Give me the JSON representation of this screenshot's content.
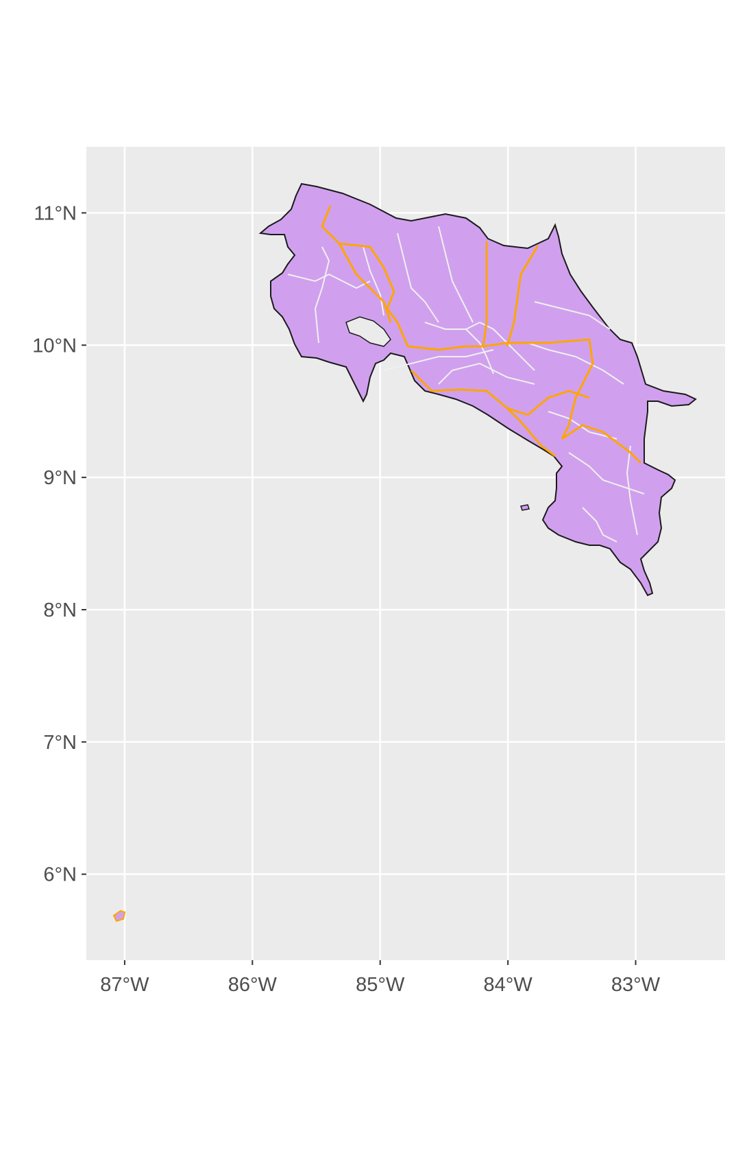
{
  "map": {
    "type": "choropleth-outline",
    "region": "Costa Rica",
    "x_axis": {
      "ticks": [
        {
          "value": -87,
          "label": "87°W"
        },
        {
          "value": -86,
          "label": "86°W"
        },
        {
          "value": -85,
          "label": "85°W"
        },
        {
          "value": -84,
          "label": "84°W"
        },
        {
          "value": -83,
          "label": "83°W"
        }
      ],
      "range": [
        -87.3,
        -82.3
      ]
    },
    "y_axis": {
      "ticks": [
        {
          "value": 11,
          "label": "11°N"
        },
        {
          "value": 10,
          "label": "10°N"
        },
        {
          "value": 9,
          "label": "9°N"
        },
        {
          "value": 8,
          "label": "8°N"
        },
        {
          "value": 7,
          "label": "7°N"
        },
        {
          "value": 6,
          "label": "6°N"
        }
      ],
      "range": [
        5.35,
        11.5
      ]
    },
    "grid": true,
    "colors": {
      "panel_background": "#ebebeb",
      "grid_line": "#ffffff",
      "land_fill": "#d0a0ee",
      "country_outline": "#1a1a1a",
      "province_border": "#ffa500",
      "canton_border": "#f0f0f0"
    }
  }
}
